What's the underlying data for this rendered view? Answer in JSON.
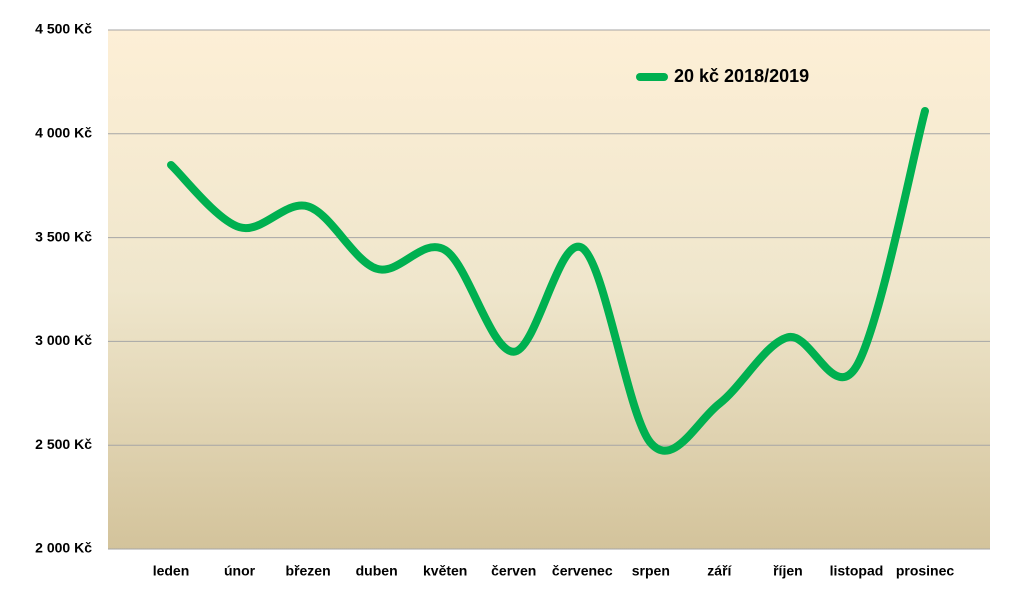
{
  "chart_data": {
    "type": "line",
    "categories": [
      "leden",
      "únor",
      "březen",
      "duben",
      "květen",
      "červen",
      "červenec",
      "srpen",
      "září",
      "říjen",
      "listopad",
      "prosinec"
    ],
    "series": [
      {
        "name": "20 kč 2018/2019",
        "color": "#00b050",
        "values": [
          3850,
          3550,
          3650,
          3350,
          3440,
          2950,
          3450,
          2510,
          2700,
          3020,
          2880,
          4110
        ]
      }
    ],
    "ylim": [
      2000,
      4500
    ],
    "yticks": [
      {
        "value": 2000,
        "label": "2 000 Kč"
      },
      {
        "value": 2500,
        "label": "2 500 Kč"
      },
      {
        "value": 3000,
        "label": "3 000 Kč"
      },
      {
        "value": 3500,
        "label": "3 500 Kč"
      },
      {
        "value": 4000,
        "label": "4 000 Kč"
      },
      {
        "value": 4500,
        "label": "4 500 Kč"
      }
    ],
    "grid": true,
    "legend": "top"
  }
}
